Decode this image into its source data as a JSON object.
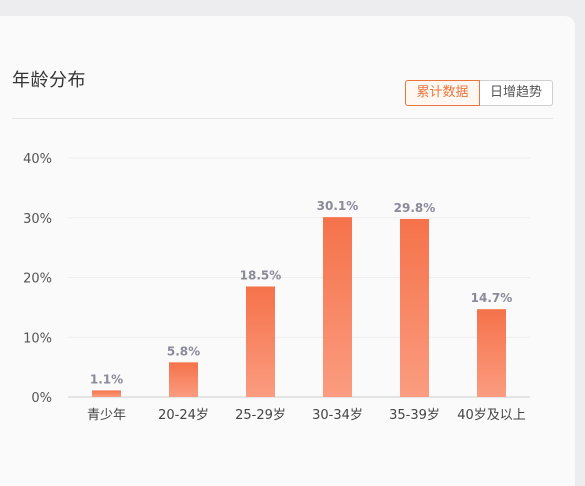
{
  "header": {
    "title": "年龄分布",
    "tabs": [
      {
        "label": "累计数据",
        "active": true
      },
      {
        "label": "日增趋势",
        "active": false
      }
    ]
  },
  "colors": {
    "accent": "#e8763e",
    "bar_top": "#f5724a",
    "bar_bottom": "#fb9c80"
  },
  "chart_data": {
    "type": "bar",
    "categories": [
      "青少年",
      "20-24岁",
      "25-29岁",
      "30-34岁",
      "35-39岁",
      "40岁及以上"
    ],
    "values": [
      1.1,
      5.8,
      18.5,
      30.1,
      29.8,
      14.7
    ],
    "data_labels": [
      "1.1%",
      "5.8%",
      "18.5%",
      "30.1%",
      "29.8%",
      "14.7%"
    ],
    "y_ticks": [
      "0%",
      "10%",
      "20%",
      "30%",
      "40%"
    ],
    "ylim": [
      0,
      40
    ],
    "grid": true,
    "title": "年龄分布"
  }
}
